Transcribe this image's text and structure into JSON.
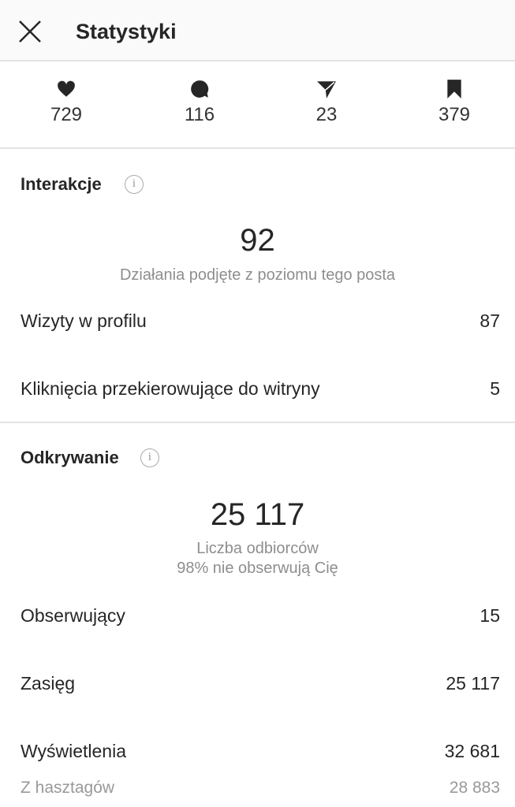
{
  "header": {
    "title": "Statystyki",
    "close_icon": "close-icon"
  },
  "stats": [
    {
      "icon": "heart-icon",
      "value": "729"
    },
    {
      "icon": "comment-icon",
      "value": "116"
    },
    {
      "icon": "send-icon",
      "value": "23"
    },
    {
      "icon": "bookmark-icon",
      "value": "379"
    }
  ],
  "interactions": {
    "title": "Interakcje",
    "info": "i",
    "total": "92",
    "total_label": "Działania podjęte z poziomu tego posta",
    "rows": [
      {
        "label": "Wizyty w profilu",
        "value": "87"
      },
      {
        "label": "Kliknięcia przekierowujące do witryny",
        "value": "5"
      }
    ]
  },
  "discovery": {
    "title": "Odkrywanie",
    "info": "i",
    "total": "25 117",
    "total_label": "Liczba odbiorców",
    "total_note": "98% nie obserwują Cię",
    "rows": [
      {
        "label": "Obserwujący",
        "value": "15"
      },
      {
        "label": "Zasięg",
        "value": "25 117"
      },
      {
        "label": "Wyświetlenia",
        "value": "32 681"
      }
    ],
    "sub_rows": [
      {
        "label": "Z hasztagów",
        "value": "28 883"
      }
    ]
  }
}
